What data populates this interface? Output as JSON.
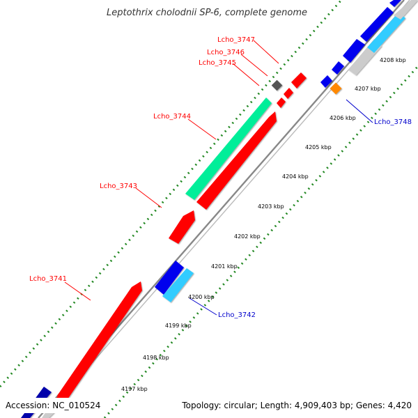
{
  "title": "Leptothrix cholodnii SP-6, complete genome",
  "footer": {
    "accession": "Accession: NC_010524",
    "topology": "Topology: circular; Length: 4,909,403 bp; Genes: 4,420"
  },
  "axis": {
    "ticks": [
      "4197 kbp",
      "4198 kbp",
      "4199 kbp",
      "4200 kbp",
      "4201 kbp",
      "4202 kbp",
      "4203 kbp",
      "4204 kbp",
      "4205 kbp",
      "4206 kbp",
      "4207 kbp",
      "4208 kbp"
    ]
  },
  "genes": [
    {
      "label": "Lcho_3741",
      "color": "#ff0000"
    },
    {
      "label": "Lcho_3742",
      "color": "#0000cc"
    },
    {
      "label": "Lcho_3743",
      "color": "#ff0000"
    },
    {
      "label": "Lcho_3744",
      "color": "#ff0000"
    },
    {
      "label": "Lcho_3745",
      "color": "#ff0000"
    },
    {
      "label": "Lcho_3746",
      "color": "#ff0000"
    },
    {
      "label": "Lcho_3747",
      "color": "#ff0000"
    },
    {
      "label": "Lcho_3748",
      "color": "#0000cc"
    }
  ],
  "colors": {
    "forward_cds": "#ff0000",
    "reverse_cds": "#0000ff",
    "rna": "#00ee99",
    "reverse_feature": "#33ccff",
    "other_feature": "#ff8800",
    "unknown_feature": "#555555",
    "backbone": "#888888",
    "gc_skew": "#228822"
  }
}
